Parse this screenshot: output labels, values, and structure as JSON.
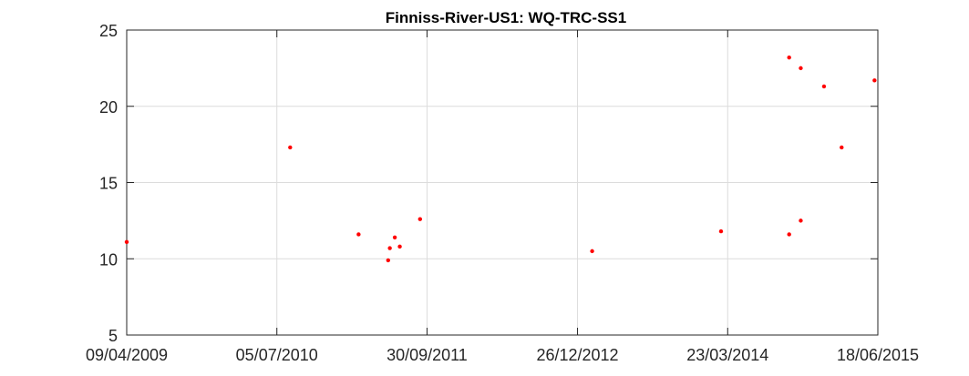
{
  "chart_data": {
    "type": "scatter",
    "title": "Finniss-River-US1: WQ-TRC-SS1",
    "xlabel": "",
    "ylabel": "",
    "x_axis_type": "date",
    "xlim": [
      "2009-04-09",
      "2015-06-18"
    ],
    "ylim": [
      5,
      25
    ],
    "x_ticks": [
      "2009-04-09",
      "2010-07-05",
      "2011-09-30",
      "2012-12-26",
      "2014-03-23",
      "2015-06-18"
    ],
    "x_tick_labels": [
      "09/04/2009",
      "05/07/2010",
      "30/09/2011",
      "26/12/2012",
      "23/03/2014",
      "18/06/2015"
    ],
    "y_ticks": [
      5,
      10,
      15,
      20,
      25
    ],
    "y_tick_labels": [
      "5",
      "10",
      "15",
      "20",
      "25"
    ],
    "grid": true,
    "marker_color": "#ff0000",
    "points": [
      {
        "x": "2009-04-09",
        "y": 11.1
      },
      {
        "x": "2010-08-14",
        "y": 17.3
      },
      {
        "x": "2011-03-08",
        "y": 11.6
      },
      {
        "x": "2011-06-05",
        "y": 9.9
      },
      {
        "x": "2011-06-10",
        "y": 10.7
      },
      {
        "x": "2011-06-25",
        "y": 11.4
      },
      {
        "x": "2011-07-10",
        "y": 10.8
      },
      {
        "x": "2011-09-09",
        "y": 12.6
      },
      {
        "x": "2013-02-08",
        "y": 10.5
      },
      {
        "x": "2014-03-03",
        "y": 11.8
      },
      {
        "x": "2014-09-24",
        "y": 11.6
      },
      {
        "x": "2014-09-24",
        "y": 23.2
      },
      {
        "x": "2014-10-29",
        "y": 22.5
      },
      {
        "x": "2014-10-29",
        "y": 12.5
      },
      {
        "x": "2015-01-07",
        "y": 21.3
      },
      {
        "x": "2015-03-01",
        "y": 17.3
      },
      {
        "x": "2015-06-08",
        "y": 21.7
      }
    ]
  }
}
